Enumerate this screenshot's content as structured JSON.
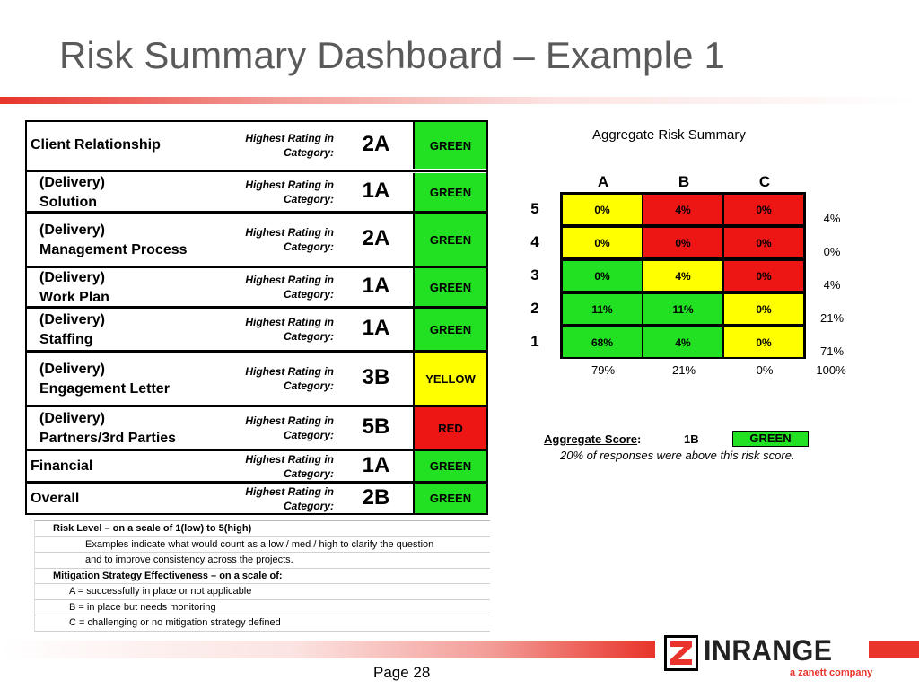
{
  "title": "Risk Summary Dashboard – Example 1",
  "categories": [
    {
      "line1": "Client Relationship",
      "line2": "",
      "label_line1": "Highest Rating in",
      "label_line2": "Category:",
      "rating": "2A",
      "status": "GREEN"
    },
    {
      "line1": "(Delivery)",
      "line2": "Solution",
      "label_line1": "Highest Rating in",
      "label_line2": "Category:",
      "rating": "1A",
      "status": "GREEN"
    },
    {
      "line1": "(Delivery)",
      "line2": "Management Process",
      "label_line1": "Highest Rating in",
      "label_line2": "Category:",
      "rating": "2A",
      "status": "GREEN"
    },
    {
      "line1": "(Delivery)",
      "line2": "Work Plan",
      "label_line1": "Highest Rating in",
      "label_line2": "Category:",
      "rating": "1A",
      "status": "GREEN"
    },
    {
      "line1": "(Delivery)",
      "line2": "Staffing",
      "label_line1": "Highest Rating in",
      "label_line2": "Category:",
      "rating": "1A",
      "status": "GREEN"
    },
    {
      "line1": "(Delivery)",
      "line2": "Engagement Letter",
      "label_line1": "Highest Rating in",
      "label_line2": "Category:",
      "rating": "3B",
      "status": "YELLOW"
    },
    {
      "line1": "(Delivery)",
      "line2": "Partners/3rd Parties",
      "label_line1": "Highest Rating in",
      "label_line2": "Category:",
      "rating": "5B",
      "status": "RED"
    },
    {
      "line1": "Financial",
      "line2": "",
      "label_line1": "Highest Rating in",
      "label_line2": "Category:",
      "rating": "1A",
      "status": "GREEN"
    },
    {
      "line1": "Overall",
      "line2": "",
      "label_line1": "Highest Rating in",
      "label_line2": "Category:",
      "rating": "2B",
      "status": "GREEN"
    }
  ],
  "legend": [
    "Risk Level – on a scale of 1(low) to 5(high)",
    "Examples indicate what would count as a low / med / high to clarify the question",
    "and to improve consistency across the projects.",
    "Mitigation Strategy Effectiveness – on a scale of:",
    "A  =  successfully in place or not applicable",
    "B  =  in place but needs monitoring",
    "C  =  challenging or no mitigation strategy defined"
  ],
  "aggregate": {
    "title": "Aggregate Risk Summary",
    "columns": [
      "A",
      "B",
      "C"
    ],
    "rows": [
      {
        "level": "5",
        "cells": [
          "0%",
          "4%",
          "0%"
        ],
        "colors": [
          "yellow",
          "red",
          "red"
        ],
        "total": "4%"
      },
      {
        "level": "4",
        "cells": [
          "0%",
          "0%",
          "0%"
        ],
        "colors": [
          "yellow",
          "red",
          "red"
        ],
        "total": "0%"
      },
      {
        "level": "3",
        "cells": [
          "0%",
          "4%",
          "0%"
        ],
        "colors": [
          "green",
          "yellow",
          "red"
        ],
        "total": "4%"
      },
      {
        "level": "2",
        "cells": [
          "11%",
          "11%",
          "0%"
        ],
        "colors": [
          "green",
          "green",
          "yellow"
        ],
        "total": "21%"
      },
      {
        "level": "1",
        "cells": [
          "68%",
          "4%",
          "0%"
        ],
        "colors": [
          "green",
          "green",
          "yellow"
        ],
        "total": "71%"
      }
    ],
    "column_totals": [
      "79%",
      "21%",
      "0%"
    ],
    "grand_total": "100%",
    "score_label": "Aggregate Score",
    "score_colon": ":",
    "score_value": "1B",
    "score_status": "GREEN",
    "score_note": "20% of responses were above this risk score."
  },
  "footer": {
    "page": "Page 28",
    "logo_name": "INRANGE",
    "logo_tagline": "a zanett company"
  },
  "colors": {
    "green": "#22e122",
    "yellow": "#ffff00",
    "red": "#ee1515",
    "brand_red": "#e8342a",
    "title_gray": "#5a5a5a"
  }
}
